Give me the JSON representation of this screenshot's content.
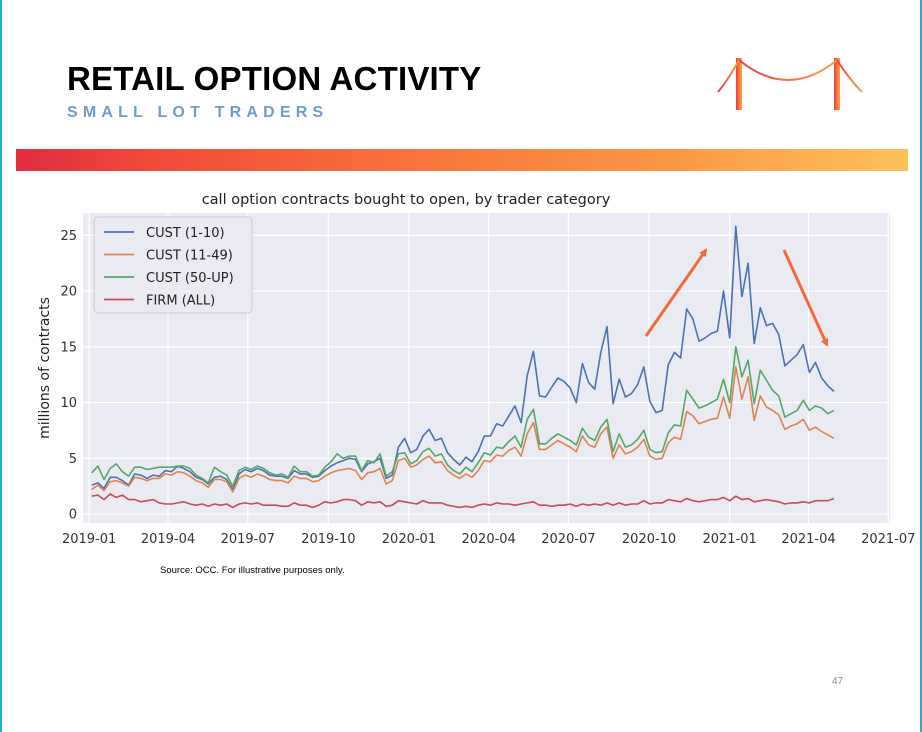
{
  "slide": {
    "title": "RETAIL OPTION ACTIVITY",
    "subtitle": "SMALL LOT TRADERS",
    "source": "Source: OCC. For illustrative purposes only.",
    "page_number": "47"
  },
  "colors": {
    "frame": "#2aa7d6",
    "subtitle": "#6f9bd1",
    "band_start": "#e12d3f",
    "band_end": "#fdc25a",
    "arrow": "#f26b3a",
    "plot_bg": "#eaeaf2"
  },
  "chart_data": {
    "type": "line",
    "title": "call option contracts bought to open, by trader category",
    "xlabel": "",
    "ylabel": "millions of contracts",
    "ylim": [
      -0.8,
      27
    ],
    "xlim": [
      "2018-12-25",
      "2021-07-03"
    ],
    "x_ticks": [
      "2019-01",
      "2019-04",
      "2019-07",
      "2019-10",
      "2020-01",
      "2020-04",
      "2020-07",
      "2020-10",
      "2021-01",
      "2021-04",
      "2021-07"
    ],
    "x_tick_dates": [
      "2019-01-01",
      "2019-04-01",
      "2019-07-01",
      "2019-10-01",
      "2020-01-01",
      "2020-04-01",
      "2020-07-01",
      "2020-10-01",
      "2021-01-01",
      "2021-04-01",
      "2021-07-01"
    ],
    "y_ticks": [
      0,
      5,
      10,
      15,
      20,
      25
    ],
    "grid": true,
    "legend_position": "top-left",
    "start_date": "2019-01-04",
    "interval_days": 7,
    "series": [
      {
        "name": "CUST (1-10)",
        "color": "#4c72b0",
        "values": [
          2.6,
          2.8,
          2.3,
          3.3,
          3.3,
          3.0,
          2.6,
          3.6,
          3.5,
          3.2,
          3.5,
          3.4,
          3.9,
          3.8,
          4.3,
          4.1,
          3.8,
          3.3,
          3.1,
          2.7,
          3.3,
          3.4,
          3.1,
          2.2,
          3.6,
          4.0,
          3.8,
          4.1,
          3.9,
          3.5,
          3.4,
          3.4,
          3.2,
          3.9,
          3.6,
          3.6,
          3.3,
          3.4,
          3.9,
          4.3,
          4.6,
          4.8,
          5.0,
          4.9,
          3.8,
          4.5,
          4.7,
          5.0,
          3.2,
          3.5,
          6.0,
          6.8,
          5.5,
          5.8,
          7.0,
          7.6,
          6.6,
          6.8,
          5.5,
          4.9,
          4.4,
          5.1,
          4.7,
          5.6,
          7.0,
          7.0,
          8.1,
          7.9,
          8.8,
          9.7,
          8.2,
          12.4,
          14.6,
          10.6,
          10.5,
          11.4,
          12.2,
          11.9,
          11.3,
          10.0,
          13.5,
          11.8,
          11.2,
          14.5,
          16.8,
          9.9,
          12.1,
          10.5,
          10.8,
          11.6,
          13.2,
          10.1,
          9.1,
          9.3,
          13.4,
          14.5,
          14.0,
          18.4,
          17.5,
          15.5,
          15.8,
          16.2,
          16.4,
          20.0,
          15.8,
          25.8,
          19.5,
          22.5,
          15.3,
          18.5,
          16.9,
          17.1,
          16.1,
          13.3,
          13.8,
          14.3,
          15.2,
          12.7,
          13.6,
          12.2,
          11.5,
          11.0
        ]
      },
      {
        "name": "CUST (11-49)",
        "color": "#dd8452",
        "values": [
          2.2,
          2.6,
          2.1,
          2.9,
          3.0,
          2.8,
          2.5,
          3.3,
          3.2,
          3.0,
          3.2,
          3.2,
          3.6,
          3.5,
          3.8,
          3.7,
          3.4,
          3.0,
          2.8,
          2.4,
          3.1,
          3.1,
          2.9,
          2.0,
          3.2,
          3.5,
          3.3,
          3.6,
          3.4,
          3.1,
          3.0,
          3.0,
          2.8,
          3.4,
          3.2,
          3.2,
          2.9,
          3.0,
          3.4,
          3.7,
          3.9,
          4.0,
          4.1,
          3.9,
          3.1,
          3.7,
          3.8,
          4.1,
          2.7,
          3.0,
          4.8,
          5.0,
          4.2,
          4.4,
          4.9,
          5.2,
          4.6,
          4.7,
          3.9,
          3.5,
          3.2,
          3.6,
          3.3,
          3.9,
          4.8,
          4.7,
          5.3,
          5.2,
          5.7,
          6.0,
          5.2,
          7.2,
          8.2,
          5.8,
          5.8,
          6.2,
          6.6,
          6.3,
          6.0,
          5.6,
          7.0,
          6.2,
          6.0,
          7.2,
          7.8,
          5.0,
          6.2,
          5.4,
          5.6,
          6.0,
          6.7,
          5.2,
          4.9,
          5.0,
          6.4,
          6.9,
          6.7,
          9.2,
          8.8,
          8.1,
          8.3,
          8.5,
          8.6,
          10.5,
          8.6,
          13.2,
          10.3,
          12.3,
          8.4,
          10.6,
          9.6,
          9.3,
          8.9,
          7.6,
          7.9,
          8.1,
          8.5,
          7.5,
          7.8,
          7.4,
          7.1,
          6.8
        ]
      },
      {
        "name": "CUST (50-UP)",
        "color": "#55a868",
        "values": [
          3.7,
          4.3,
          3.1,
          4.1,
          4.5,
          3.8,
          3.4,
          4.2,
          4.2,
          4.0,
          4.1,
          4.2,
          4.2,
          4.2,
          4.3,
          4.3,
          4.1,
          3.5,
          3.2,
          2.8,
          4.2,
          3.8,
          3.5,
          2.5,
          3.9,
          4.2,
          4.0,
          4.3,
          4.1,
          3.7,
          3.5,
          3.6,
          3.3,
          4.3,
          3.8,
          3.8,
          3.4,
          3.5,
          4.2,
          4.7,
          5.4,
          5.0,
          5.2,
          5.2,
          3.9,
          4.8,
          4.6,
          5.4,
          3.4,
          3.8,
          5.4,
          5.5,
          4.5,
          4.8,
          5.6,
          5.9,
          5.2,
          5.4,
          4.4,
          3.9,
          3.6,
          4.2,
          3.8,
          4.6,
          5.5,
          5.3,
          6.0,
          5.9,
          6.5,
          7.0,
          6.0,
          8.5,
          9.4,
          6.3,
          6.3,
          6.8,
          7.2,
          6.9,
          6.6,
          6.2,
          7.7,
          6.9,
          6.6,
          7.8,
          8.5,
          5.6,
          7.2,
          6.0,
          6.2,
          6.7,
          7.5,
          5.8,
          5.5,
          5.6,
          7.3,
          8.0,
          7.9,
          11.1,
          10.3,
          9.5,
          9.7,
          10.0,
          10.3,
          12.1,
          10.0,
          15.0,
          12.3,
          13.8,
          9.9,
          12.9,
          12.0,
          11.1,
          10.6,
          8.7,
          9.0,
          9.3,
          10.2,
          9.3,
          9.7,
          9.5,
          9.0,
          9.3
        ]
      },
      {
        "name": "FIRM (ALL)",
        "color": "#c44e52",
        "values": [
          1.6,
          1.7,
          1.3,
          1.8,
          1.5,
          1.7,
          1.3,
          1.3,
          1.1,
          1.2,
          1.3,
          1.0,
          0.9,
          0.9,
          1.0,
          1.1,
          0.9,
          0.8,
          0.9,
          0.7,
          0.9,
          0.8,
          0.9,
          0.6,
          0.9,
          1.0,
          0.9,
          1.0,
          0.8,
          0.8,
          0.8,
          0.7,
          0.7,
          1.0,
          0.8,
          0.8,
          0.6,
          0.8,
          1.1,
          1.0,
          1.1,
          1.3,
          1.3,
          1.2,
          0.8,
          1.1,
          1.0,
          1.1,
          0.7,
          0.8,
          1.2,
          1.1,
          1.0,
          0.9,
          1.2,
          1.0,
          1.0,
          1.0,
          0.8,
          0.7,
          0.6,
          0.7,
          0.6,
          0.8,
          0.9,
          0.8,
          1.0,
          0.9,
          0.9,
          0.8,
          0.9,
          1.0,
          1.1,
          0.8,
          0.8,
          0.7,
          0.8,
          0.8,
          0.9,
          0.7,
          0.9,
          0.8,
          0.9,
          0.8,
          1.0,
          0.8,
          1.0,
          0.8,
          0.9,
          0.9,
          1.2,
          0.9,
          1.0,
          1.0,
          1.3,
          1.2,
          1.1,
          1.4,
          1.2,
          1.1,
          1.2,
          1.3,
          1.3,
          1.5,
          1.2,
          1.6,
          1.3,
          1.4,
          1.1,
          1.2,
          1.3,
          1.2,
          1.1,
          0.9,
          1.0,
          1.0,
          1.1,
          1.0,
          1.2,
          1.2,
          1.2,
          1.4
        ]
      }
    ]
  }
}
